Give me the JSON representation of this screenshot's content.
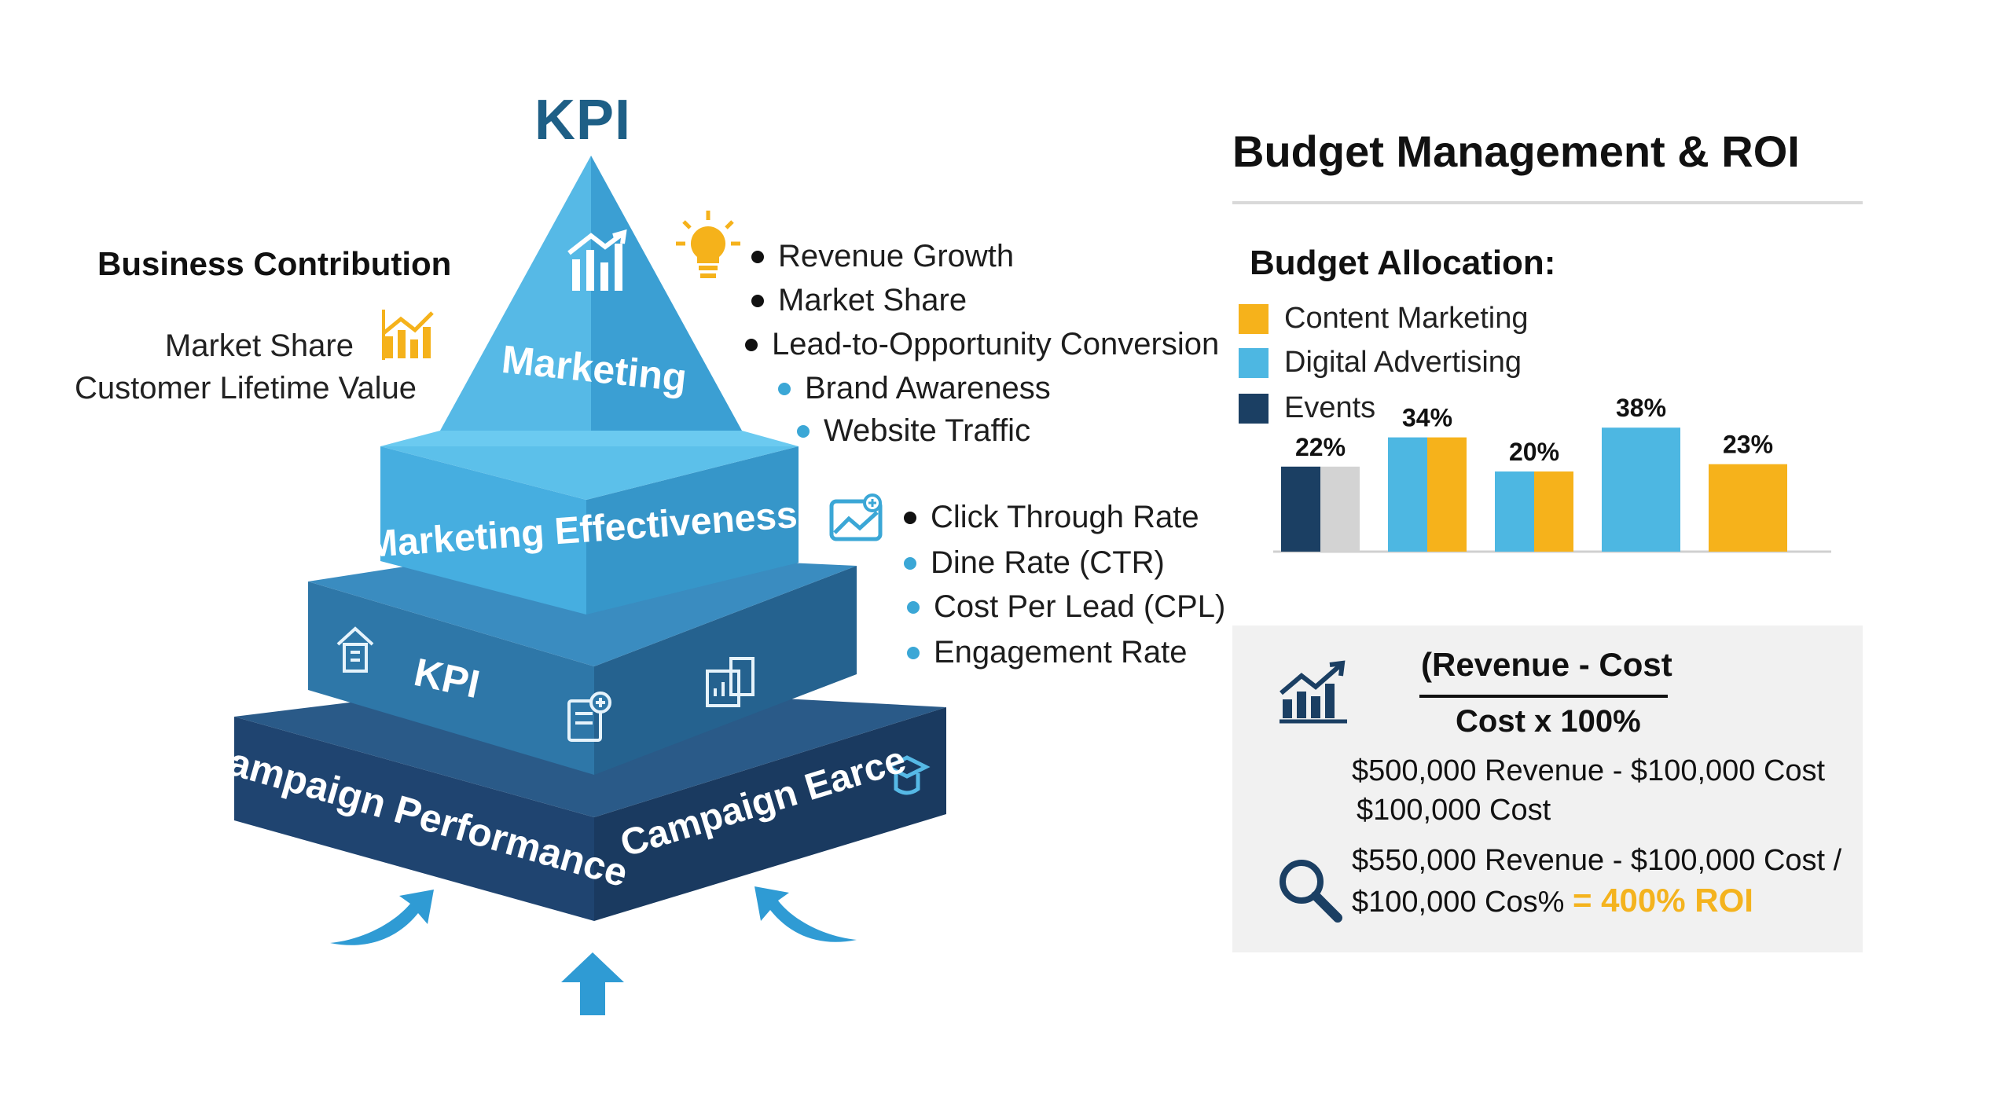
{
  "pyramid": {
    "title": "KPI",
    "levels": [
      {
        "label": "Marketing"
      },
      {
        "label": "Marketing Effectiveness"
      },
      {
        "label": "KPI"
      },
      {
        "label": "Campaign Performance",
        "right_label": "Campaign Earce"
      }
    ],
    "colors": {
      "top": "#4fb6e3",
      "level2": "#3a9fd0",
      "level3": "#2a6e9e",
      "base": "#1f4470",
      "arrow": "#2f9bd4"
    },
    "icons": [
      "growth-chart-icon",
      "lightbulb-icon",
      "building-icon",
      "document-add-icon",
      "report-icon",
      "graduation-icon",
      "image-chart-icon",
      "arrow-up-icon",
      "curved-arrow-icon"
    ]
  },
  "business_contribution": {
    "title": "Business Contribution",
    "items": [
      "Market Share",
      "Customer Lifetime Value"
    ]
  },
  "marketing_bullets": [
    {
      "text": "Revenue Growth",
      "style": "dark"
    },
    {
      "text": "Market Share",
      "style": "dark"
    },
    {
      "text": "Lead-to-Opportunity Conversion",
      "style": "dark"
    },
    {
      "text": "Brand Awareness",
      "style": "blue"
    },
    {
      "text": "Website Traffic",
      "style": "blue"
    }
  ],
  "effectiveness_bullets": [
    {
      "text": "Click Through Rate",
      "style": "dark"
    },
    {
      "text": "Dine Rate (CTR)",
      "style": "blue"
    },
    {
      "text": "Cost Per Lead (CPL)",
      "style": "blue"
    },
    {
      "text": "Engagement Rate",
      "style": "blue"
    }
  ],
  "budget": {
    "title": "Budget Management & ROI",
    "allocation_title": "Budget Allocation:",
    "legend": [
      {
        "label": "Content Marketing",
        "color": "#f6b21b"
      },
      {
        "label": "Digital Advertising",
        "color": "#4db7e2"
      },
      {
        "label": "Events",
        "color": "#1b3f63"
      }
    ]
  },
  "chart_data": {
    "type": "bar",
    "series_colors": {
      "Content Marketing": "#f6b21b",
      "Digital Advertising": "#4db7e2",
      "Events": "#1b3f63",
      "other": "#d3d3d3"
    },
    "groups": [
      {
        "label": "22%",
        "value": 22,
        "segments": [
          {
            "series": "Events"
          },
          {
            "series": "other"
          }
        ]
      },
      {
        "label": "34%",
        "value": 34,
        "segments": [
          {
            "series": "Digital Advertising"
          },
          {
            "series": "Content Marketing"
          }
        ]
      },
      {
        "label": "20%",
        "value": 20,
        "segments": [
          {
            "series": "Digital Advertising"
          },
          {
            "series": "Content Marketing"
          }
        ]
      },
      {
        "label": "38%",
        "value": 38,
        "segments": [
          {
            "series": "Digital Advertising"
          }
        ]
      },
      {
        "label": "23%",
        "value": 23,
        "segments": [
          {
            "series": "Content Marketing"
          }
        ]
      }
    ]
  },
  "roi": {
    "formula_top": "(Revenue - Cost",
    "formula_bottom": "Cost x 100%",
    "example1_line1": "$500,000 Revenue - $100,000 Cost",
    "example1_line2": "$100,000 Cost",
    "example2_line1": "$550,000 Revenue - $100,000 Cost /",
    "example2_line2": "$100,000 Cos%",
    "result": "= 400% ROI",
    "icons": [
      "growth-chart-icon",
      "magnifier-icon"
    ]
  }
}
